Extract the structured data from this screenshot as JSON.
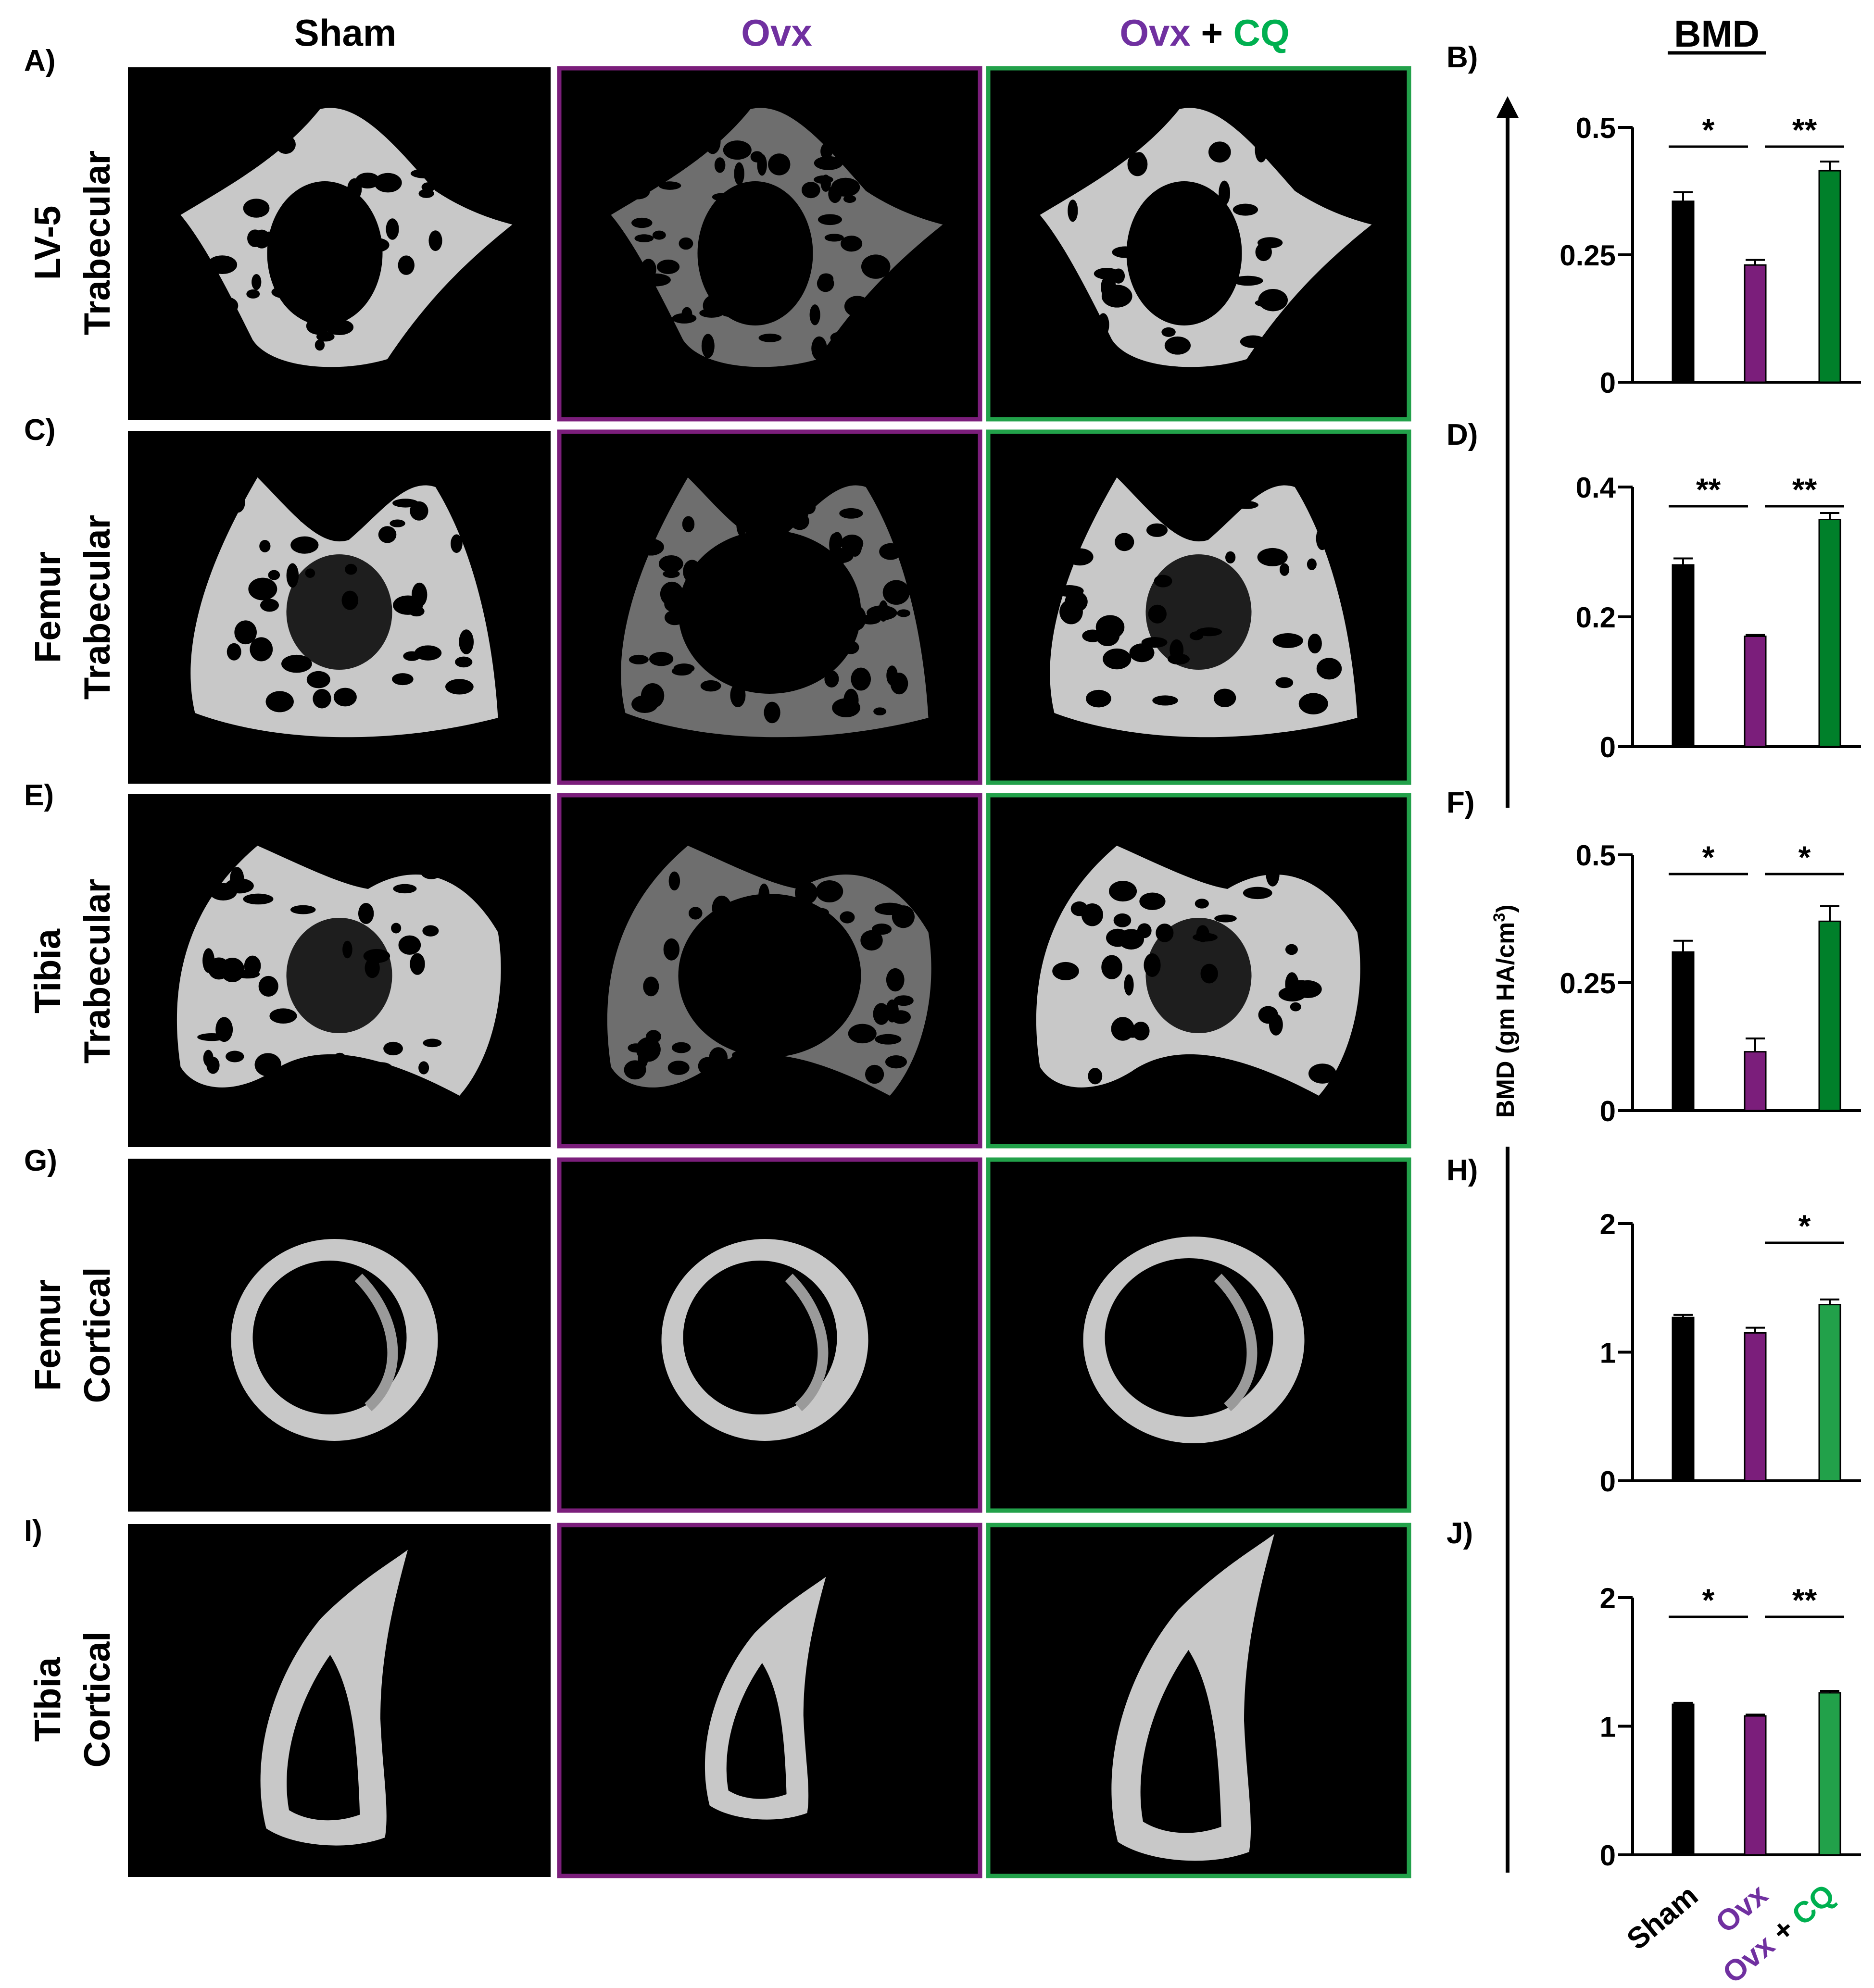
{
  "figure": {
    "column_headers": {
      "sham": "Sham",
      "ovx": "Ovx",
      "ovxcq_a": "Ovx",
      "ovxcq_plus": "+",
      "ovxcq_b": "CQ"
    },
    "bmd_header": "BMD",
    "y_axis_label": "BMD (gm HA/cm",
    "y_axis_sup": "3",
    "y_axis_close": ")",
    "row_labels": [
      {
        "panel": "A)",
        "line1": "LV-5",
        "line2": "Trabecular"
      },
      {
        "panel": "C)",
        "line1": "Femur",
        "line2": "Trabecular"
      },
      {
        "panel": "E)",
        "line1": "Tibia",
        "line2": "Trabecular"
      },
      {
        "panel": "G)",
        "line1": "Femur",
        "line2": "Cortical"
      },
      {
        "panel": "I)",
        "line1": "Tibia",
        "line2": "Cortical"
      }
    ],
    "x_category_labels": {
      "sham": "Sham",
      "ovx": "Ovx",
      "ovxcq_a": "Ovx",
      "ovxcq_plus": "+",
      "ovxcq_b": "CQ"
    },
    "colors": {
      "sham": "#000000",
      "ovx": "#7b1e7b",
      "ovx_text": "#7030a0",
      "ovxcq_dark": "#00802a",
      "ovxcq_light": "#22a14a",
      "cq_text": "#00b050",
      "scan_bg": "#000000",
      "bone": "#c8c8c8"
    },
    "scan_images": [
      "lv5-trabecular",
      "femur-trabecular",
      "tibia-trabecular",
      "femur-cortical",
      "tibia-cortical"
    ]
  },
  "chart_data": [
    {
      "panel": "B)",
      "type": "bar",
      "categories": [
        "Sham",
        "Ovx",
        "Ovx + CQ"
      ],
      "values": [
        0.355,
        0.23,
        0.415
      ],
      "errors": [
        0.018,
        0.01,
        0.018
      ],
      "ylim": [
        0,
        0.5
      ],
      "yticks": [
        "0",
        "0.25",
        "0.5"
      ],
      "significance": [
        {
          "from": 0,
          "to": 1,
          "label": "*"
        },
        {
          "from": 1,
          "to": 2,
          "label": "**"
        }
      ]
    },
    {
      "panel": "D)",
      "type": "bar",
      "categories": [
        "Sham",
        "Ovx",
        "Ovx + CQ"
      ],
      "values": [
        0.28,
        0.17,
        0.35
      ],
      "errors": [
        0.01,
        0.002,
        0.01
      ],
      "ylim": [
        0,
        0.4
      ],
      "yticks": [
        "0",
        "0.2",
        "0.4"
      ],
      "significance": [
        {
          "from": 0,
          "to": 1,
          "label": "**"
        },
        {
          "from": 1,
          "to": 2,
          "label": "**"
        }
      ]
    },
    {
      "panel": "F)",
      "type": "bar",
      "categories": [
        "Sham",
        "Ovx",
        "Ovx + CQ"
      ],
      "values": [
        0.31,
        0.115,
        0.37
      ],
      "errors": [
        0.022,
        0.026,
        0.03
      ],
      "ylim": [
        0,
        0.5
      ],
      "yticks": [
        "0",
        "0.25",
        "0.5"
      ],
      "significance": [
        {
          "from": 0,
          "to": 1,
          "label": "*"
        },
        {
          "from": 1,
          "to": 2,
          "label": "*"
        }
      ]
    },
    {
      "panel": "H)",
      "type": "bar",
      "categories": [
        "Sham",
        "Ovx",
        "Ovx + CQ"
      ],
      "values": [
        1.27,
        1.15,
        1.37
      ],
      "errors": [
        0.02,
        0.04,
        0.04
      ],
      "ylim": [
        0,
        2
      ],
      "yticks": [
        "0",
        "1",
        "2"
      ],
      "significance": [
        {
          "from": 1,
          "to": 2,
          "label": "*"
        }
      ]
    },
    {
      "panel": "J)",
      "type": "bar",
      "categories": [
        "Sham",
        "Ovx",
        "Ovx + CQ"
      ],
      "values": [
        1.17,
        1.08,
        1.26
      ],
      "errors": [
        0.012,
        0.01,
        0.015
      ],
      "ylim": [
        0,
        2
      ],
      "yticks": [
        "0",
        "1",
        "2"
      ],
      "significance": [
        {
          "from": 0,
          "to": 1,
          "label": "*"
        },
        {
          "from": 1,
          "to": 2,
          "label": "**"
        }
      ]
    }
  ]
}
